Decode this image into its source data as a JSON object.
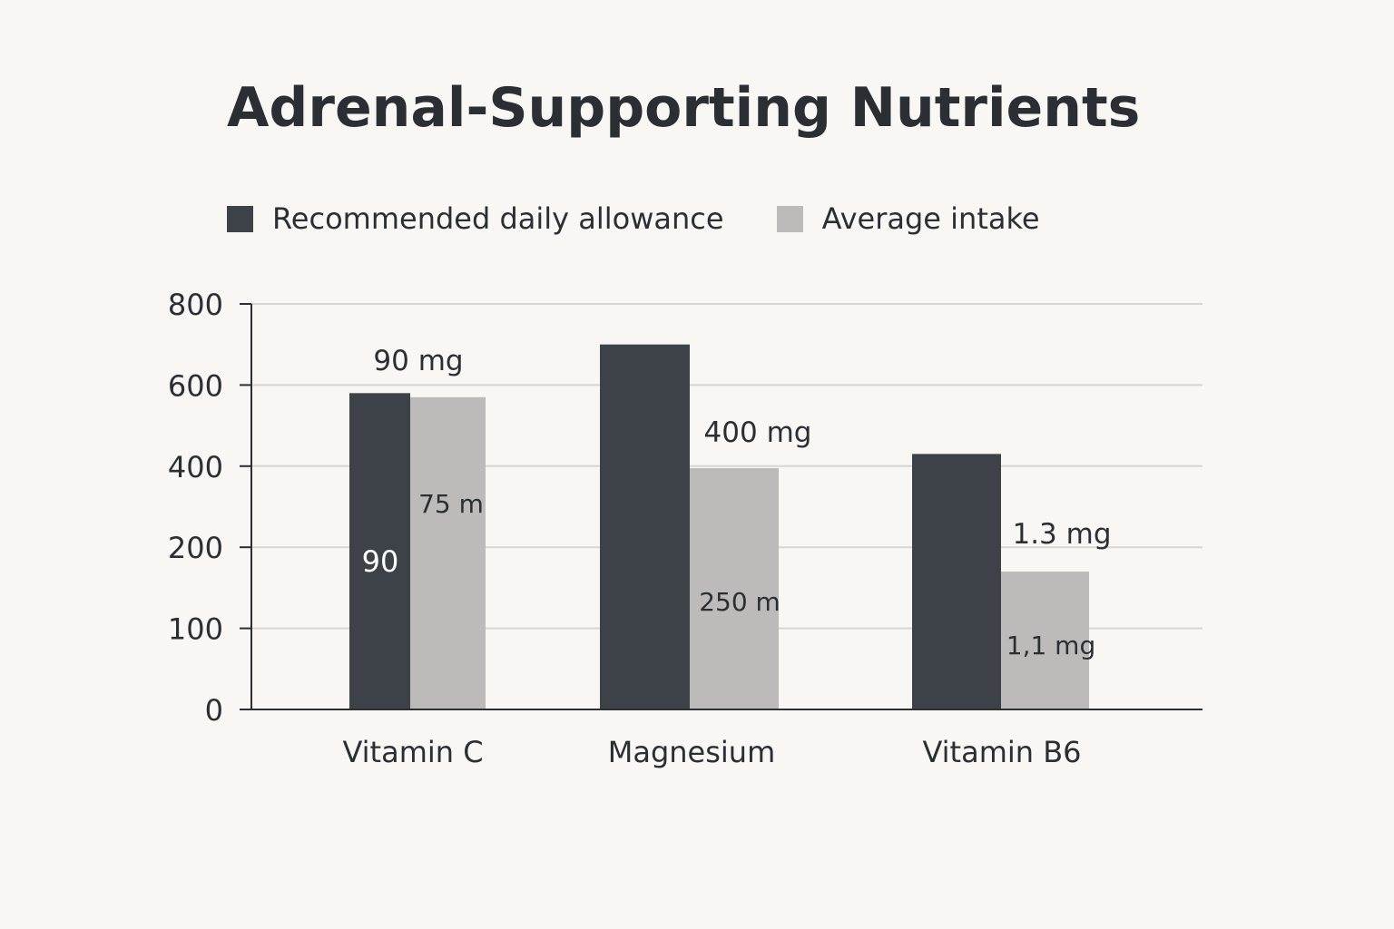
{
  "chart_data": {
    "type": "bar",
    "title": "Adrenal-Supporting Nutrients",
    "xlabel": "",
    "ylabel": "",
    "ylim": [
      0,
      800
    ],
    "y_ticks": [
      0,
      100,
      200,
      400,
      600,
      800
    ],
    "y_tick_positions": [
      0,
      1,
      2,
      3,
      4,
      5
    ],
    "grid": true,
    "legend_position": "top-left",
    "categories": [
      "Vitamin C",
      "Magnesium",
      "Vitamin B6"
    ],
    "series": [
      {
        "name": "Recommended daily allowance",
        "color": "#3d4248",
        "values": [
          580,
          700,
          430
        ],
        "labels": [
          "90",
          "",
          ""
        ]
      },
      {
        "name": "Average intake",
        "color": "#bcbbba",
        "values": [
          570,
          395,
          170
        ],
        "labels": [
          "75 m",
          "250 m",
          "1,1 mg"
        ]
      }
    ],
    "annotations": [
      "90 mg",
      "400 mg",
      "1.3 mg"
    ]
  }
}
